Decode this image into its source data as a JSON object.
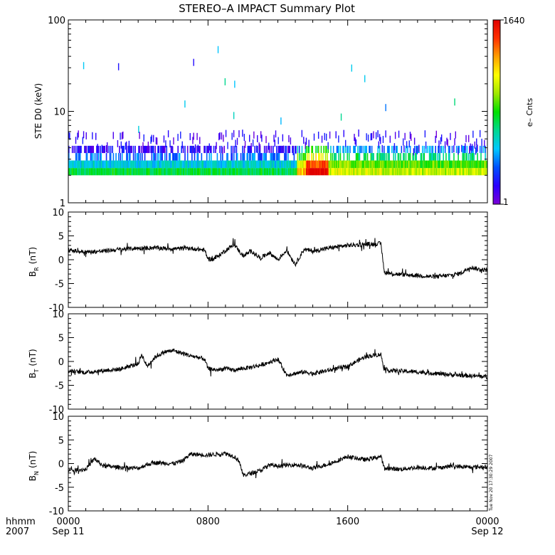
{
  "title": "STEREO–A IMPACT Summary Plot",
  "timestamp": "Tue Nov 20 17:30:29 2007",
  "x_axis": {
    "row1_label": "hhmm",
    "row2_label": "2007",
    "ticks": [
      {
        "t": 0,
        "label": "0000",
        "sub": "Sep 11"
      },
      {
        "t": 8,
        "label": "0800",
        "sub": ""
      },
      {
        "t": 16,
        "label": "1600",
        "sub": ""
      },
      {
        "t": 24,
        "label": "0000",
        "sub": "Sep 12"
      }
    ],
    "range_hours": [
      0,
      24
    ]
  },
  "colorbar": {
    "label": "e– Cnts",
    "max_label": "1640",
    "min_label": "1",
    "range": [
      1,
      1640
    ],
    "scale": "log",
    "colors": [
      "#7b00d6",
      "#2a00ff",
      "#0050ff",
      "#00c8ff",
      "#00d890",
      "#00e000",
      "#a0e800",
      "#ffff00",
      "#ffa000",
      "#ff3000",
      "#e00000"
    ]
  },
  "chart_data": [
    {
      "type": "heatmap",
      "ylabel": "STE D0 (keV)",
      "y_scale": "log",
      "ylim": [
        1,
        100
      ],
      "ytick_labels": [
        {
          "v": 1,
          "label": "1"
        },
        {
          "v": 10,
          "label": "10"
        },
        {
          "v": 100,
          "label": "100"
        }
      ],
      "bands_keV": [
        2.0,
        2.4,
        2.9,
        3.5
      ],
      "segments": [
        {
          "t_start": 0.0,
          "t_end": 13.1,
          "band_counts": [
            30,
            12,
            5,
            2
          ]
        },
        {
          "t_start": 13.1,
          "t_end": 13.6,
          "band_counts": [
            300,
            140,
            50,
            15
          ]
        },
        {
          "t_start": 13.6,
          "t_end": 14.9,
          "band_counts": [
            1640,
            700,
            150,
            40
          ]
        },
        {
          "t_start": 14.9,
          "t_end": 18.0,
          "band_counts": [
            130,
            70,
            28,
            8
          ]
        },
        {
          "t_start": 18.0,
          "t_end": 24.0,
          "band_counts": [
            110,
            55,
            22,
            6
          ]
        }
      ]
    },
    {
      "type": "line",
      "ylabel_base": "B",
      "ylabel_sub": "R",
      "ylabel_unit": "(nT)",
      "ylim": [
        -10,
        10
      ],
      "yticks": [
        -10,
        -5,
        0,
        5,
        10
      ],
      "x": [
        0,
        0.5,
        1,
        2,
        3,
        4,
        5,
        6,
        7,
        7.8,
        8.0,
        8.3,
        8.6,
        9.1,
        9.5,
        10,
        10.5,
        11,
        11.5,
        12,
        12.5,
        13,
        13.5,
        14,
        15,
        16,
        17,
        17.9,
        18.1,
        18.5,
        19,
        20,
        21,
        22,
        22.5,
        23,
        23.5,
        24
      ],
      "y": [
        2.0,
        1.8,
        1.6,
        1.8,
        2.2,
        2.4,
        2.5,
        2.3,
        2.4,
        2.0,
        0.2,
        0.1,
        0.8,
        2.2,
        3.2,
        0.8,
        1.8,
        0.3,
        1.5,
        0.0,
        2.0,
        -1.0,
        2.2,
        1.8,
        2.5,
        3.0,
        3.2,
        3.4,
        -2.6,
        -2.9,
        -3.1,
        -3.3,
        -3.6,
        -3.2,
        -2.8,
        -1.5,
        -2.0,
        -2.2
      ]
    },
    {
      "type": "line",
      "ylabel_base": "B",
      "ylabel_sub": "T",
      "ylabel_unit": "(nT)",
      "ylim": [
        -10,
        10
      ],
      "yticks": [
        -10,
        -5,
        0,
        5,
        10
      ],
      "x": [
        0,
        1,
        2,
        3,
        3.5,
        4,
        4.2,
        4.5,
        5,
        5.5,
        6,
        7,
        7.5,
        7.8,
        8.0,
        8.5,
        9,
        9.5,
        10,
        11,
        12,
        12.5,
        13,
        13.5,
        14,
        15,
        16,
        17,
        17.9,
        18.1,
        19,
        20,
        21,
        22,
        23,
        24
      ],
      "y": [
        -2.0,
        -2.3,
        -1.9,
        -1.6,
        -1.0,
        -0.5,
        1.5,
        -1.0,
        1.0,
        2.0,
        2.3,
        1.2,
        0.8,
        0.5,
        -1.5,
        -1.8,
        -1.5,
        -1.8,
        -1.5,
        -0.8,
        0.5,
        -2.8,
        -2.5,
        -2.2,
        -2.5,
        -1.8,
        -1.0,
        1.0,
        1.5,
        -1.8,
        -2.0,
        -2.2,
        -2.5,
        -2.8,
        -3.0,
        -3.2
      ]
    },
    {
      "type": "line",
      "ylabel_base": "B",
      "ylabel_sub": "N",
      "ylabel_unit": "(nT)",
      "ylim": [
        -10,
        10
      ],
      "yticks": [
        -10,
        -5,
        0,
        5,
        10
      ],
      "x": [
        0,
        1,
        1.5,
        2,
        3,
        4,
        4.5,
        5,
        6,
        6.5,
        7,
        8,
        9,
        9.5,
        9.8,
        10.0,
        10.5,
        11,
        11.5,
        12,
        13,
        14,
        15,
        16,
        17,
        17.9,
        18.1,
        19,
        20,
        21,
        22,
        23,
        24
      ],
      "y": [
        -1.5,
        -1.2,
        1.0,
        -0.5,
        -0.8,
        -1.0,
        -0.2,
        0.2,
        0.0,
        0.5,
        2.0,
        1.8,
        2.2,
        1.5,
        0.5,
        -2.5,
        -2.0,
        -1.5,
        -0.3,
        -0.5,
        -0.2,
        -1.0,
        0.0,
        1.5,
        0.8,
        1.5,
        -1.0,
        -1.2,
        -0.8,
        -1.0,
        -0.5,
        -0.8,
        -0.6
      ]
    }
  ]
}
